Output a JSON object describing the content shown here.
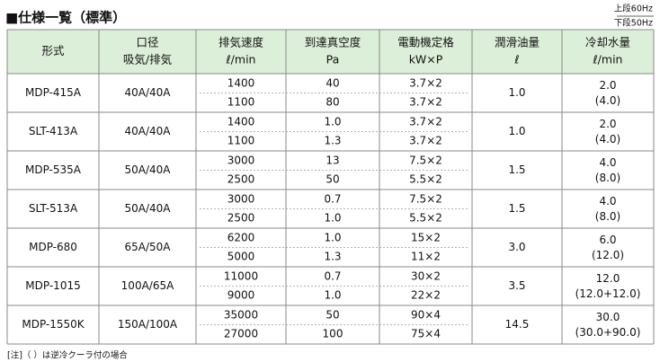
{
  "header": {
    "title": "■仕様一覧（標準）",
    "freq_top": "上段60Hz",
    "freq_bottom": "下段50Hz"
  },
  "table": {
    "columns": [
      {
        "label": "形式"
      },
      {
        "label": "口径",
        "unit": "吸気/排気"
      },
      {
        "label": "排気速度",
        "unit": "ℓ/min"
      },
      {
        "label": "到達真空度",
        "unit": "Pa"
      },
      {
        "label": "電動機定格",
        "unit": "kW×P"
      },
      {
        "label": "潤滑油量",
        "unit": "ℓ"
      },
      {
        "label": "冷却水量",
        "unit": "ℓ/min"
      }
    ],
    "rows": [
      {
        "model": "MDP-415A",
        "bore": "40A/40A",
        "speed": [
          "1400",
          "1100"
        ],
        "vacuum": [
          "40",
          "80"
        ],
        "motor": [
          "3.7×2",
          "3.7×2"
        ],
        "oil": "1.0",
        "water": [
          "2.0",
          "(4.0)"
        ]
      },
      {
        "model": "SLT-413A",
        "bore": "40A/40A",
        "speed": [
          "1400",
          "1100"
        ],
        "vacuum": [
          "1.0",
          "1.3"
        ],
        "motor": [
          "3.7×2",
          "3.7×2"
        ],
        "oil": "1.0",
        "water": [
          "2.0",
          "(4.0)"
        ]
      },
      {
        "model": "MDP-535A",
        "bore": "50A/40A",
        "speed": [
          "3000",
          "2500"
        ],
        "vacuum": [
          "13",
          "50"
        ],
        "motor": [
          "7.5×2",
          "5.5×2"
        ],
        "oil": "1.5",
        "water": [
          "4.0",
          "(8.0)"
        ]
      },
      {
        "model": "SLT-513A",
        "bore": "50A/40A",
        "speed": [
          "3000",
          "2500"
        ],
        "vacuum": [
          "0.7",
          "1.0"
        ],
        "motor": [
          "7.5×2",
          "5.5×2"
        ],
        "oil": "1.5",
        "water": [
          "4.0",
          "(8.0)"
        ]
      },
      {
        "model": "MDP-680",
        "bore": "65A/50A",
        "speed": [
          "6200",
          "5000"
        ],
        "vacuum": [
          "1.0",
          "1.3"
        ],
        "motor": [
          "15×2",
          "11×2"
        ],
        "oil": "3.0",
        "water": [
          "6.0",
          "(12.0)"
        ]
      },
      {
        "model": "MDP-1015",
        "bore": "100A/65A",
        "speed": [
          "11000",
          "9000"
        ],
        "vacuum": [
          "0.7",
          "1.0"
        ],
        "motor": [
          "30×2",
          "22×2"
        ],
        "oil": "3.5",
        "water": [
          "12.0",
          "(12.0+12.0)"
        ]
      },
      {
        "model": "MDP-1550K",
        "bore": "150A/100A",
        "speed": [
          "35000",
          "27000"
        ],
        "vacuum": [
          "50",
          "100"
        ],
        "motor": [
          "90×4",
          "75×4"
        ],
        "oil": "14.5",
        "water": [
          "30.0",
          "(30.0+90.0)"
        ]
      }
    ]
  },
  "footnote": "[注]（ ）は逆冷クーラ付の場合"
}
